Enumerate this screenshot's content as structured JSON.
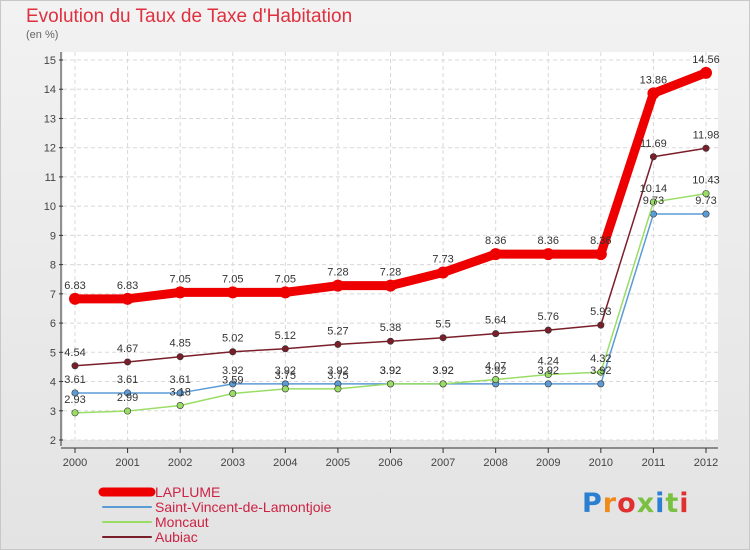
{
  "chart_data": {
    "type": "line",
    "title": "Evolution du Taux de Taxe d'Habitation",
    "subtitle": "(en %)",
    "x": [
      2000,
      2001,
      2002,
      2003,
      2004,
      2005,
      2006,
      2007,
      2008,
      2009,
      2010,
      2011,
      2012
    ],
    "ylim": [
      2,
      15
    ],
    "yticks": [
      2,
      3,
      4,
      5,
      6,
      7,
      8,
      9,
      10,
      11,
      12,
      13,
      14,
      15
    ],
    "grid": true,
    "legend": "bottom-left",
    "series": [
      {
        "name": "LAPLUME",
        "color": "#ee0000",
        "values": [
          6.83,
          6.83,
          7.05,
          7.05,
          7.05,
          7.28,
          7.28,
          7.73,
          8.36,
          8.36,
          8.36,
          13.86,
          14.56
        ],
        "labels": [
          "6.83",
          "6.83",
          "7.05",
          "7.05",
          "7.05",
          "7.28",
          "7.28",
          "7.73",
          "8.36",
          "8.36",
          "8.36",
          "13.86",
          "14.56"
        ]
      },
      {
        "name": "Saint-Vincent-de-Lamontjoie",
        "color": "#5b9bd5",
        "values": [
          3.61,
          3.61,
          3.61,
          3.92,
          3.92,
          3.92,
          3.92,
          3.92,
          3.92,
          3.92,
          3.92,
          9.73,
          9.73
        ],
        "labels": [
          "3.61",
          "3.61",
          "3.61",
          "3.92",
          "3.92",
          "3.92",
          "3.92",
          "3.92",
          "3.92",
          "3.92",
          "3.92",
          "9.73",
          "9.73"
        ]
      },
      {
        "name": "Moncaut",
        "color": "#99dd66",
        "values": [
          2.93,
          2.99,
          3.18,
          3.59,
          3.75,
          3.75,
          3.92,
          3.92,
          4.07,
          4.24,
          4.32,
          10.14,
          10.43
        ],
        "labels": [
          "2.93",
          "2.99",
          "3.18",
          "3.59",
          "3.75",
          "3.75",
          "3.92",
          "3.92",
          "4.07",
          "4.24",
          "4.32",
          "10.14",
          "10.43"
        ]
      },
      {
        "name": "Aubiac",
        "color": "#7a1f2a",
        "values": [
          4.54,
          4.67,
          4.85,
          5.02,
          5.12,
          5.27,
          5.38,
          5.5,
          5.64,
          5.76,
          5.93,
          11.69,
          11.98
        ],
        "labels": [
          "4.54",
          "4.67",
          "4.85",
          "5.02",
          "5.12",
          "5.27",
          "5.38",
          "5.5",
          "5.64",
          "5.76",
          "5.93",
          "11.69",
          "11.98"
        ]
      }
    ]
  },
  "brand": {
    "text": "Proxiti"
  }
}
